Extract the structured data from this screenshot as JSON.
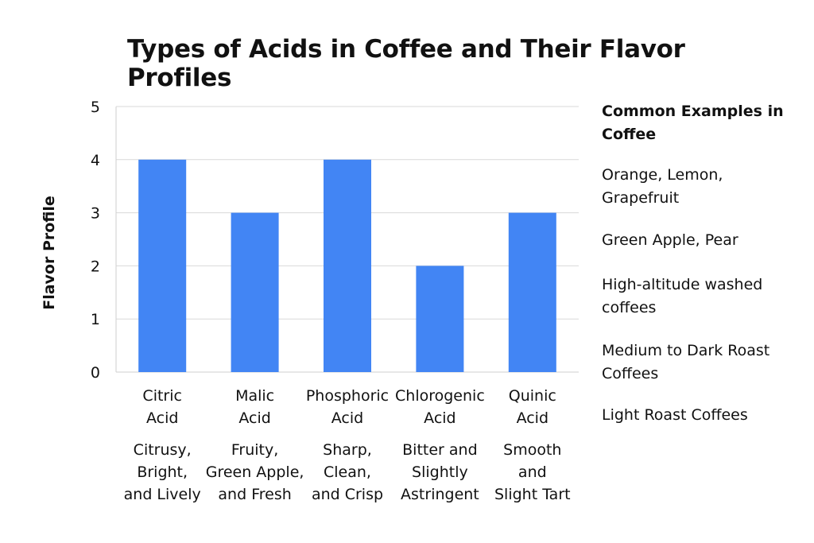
{
  "chart_data": {
    "type": "bar",
    "title": "Types of Acids in Coffee and Their Flavor Profiles",
    "xlabel": "",
    "ylabel": "Flavor Profile",
    "ylim": [
      0,
      5
    ],
    "yticks": [
      "0",
      "1",
      "2",
      "3",
      "4",
      "5"
    ],
    "grid": true,
    "bar_color": "#4285f4",
    "categories": [
      [
        "Citric",
        "Acid"
      ],
      [
        "Malic",
        "Acid"
      ],
      [
        "Phosphoric",
        "Acid"
      ],
      [
        "Chlorogenic",
        "Acid"
      ],
      [
        "Quinic",
        "Acid"
      ]
    ],
    "descriptions": [
      [
        "Citrusy,",
        "Bright,",
        "and Lively"
      ],
      [
        "Fruity,",
        "Green Apple,",
        "and Fresh"
      ],
      [
        "Sharp,",
        "Clean,",
        "and Crisp"
      ],
      [
        "Bitter and",
        "Slightly",
        "Astringent"
      ],
      [
        "Smooth",
        "and",
        "Slight Tart"
      ]
    ],
    "values": [
      4,
      3,
      4,
      2,
      3
    ],
    "legend": {
      "title": "Common Examples in Coffee",
      "items": [
        "Orange, Lemon, Grapefruit",
        "Green Apple, Pear",
        "High-altitude washed coffees",
        "Medium to Dark Roast Coffees",
        "Light Roast Coffees"
      ]
    }
  }
}
